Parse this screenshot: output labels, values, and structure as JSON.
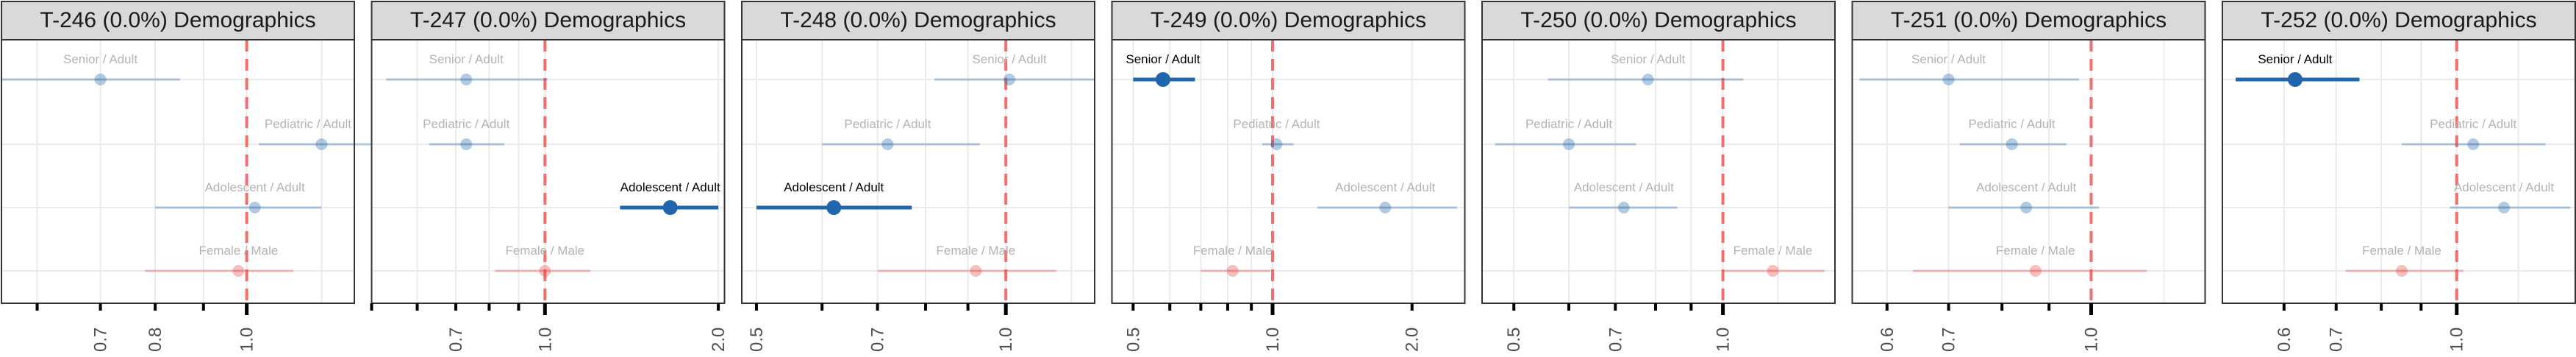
{
  "chart_data": [
    {
      "type": "forest",
      "title": "T-246 (0.0%) Demographics",
      "scale": "log",
      "xlim": [
        0.55,
        1.3
      ],
      "reference_line": 1.0,
      "tick_labels": [
        "0.7",
        "0.8",
        "1.0"
      ],
      "ticks": [
        0.6,
        0.7,
        0.8,
        0.9,
        1.0
      ],
      "gridlines": [
        0.6,
        0.7,
        0.8,
        0.9,
        1.0,
        1.2
      ],
      "rows": [
        {
          "label": "Senior / Adult",
          "estimate": 0.7,
          "low": 0.55,
          "high": 0.85,
          "highlighted": false,
          "group": "age"
        },
        {
          "label": "Pediatric / Adult",
          "estimate": 1.2,
          "low": 1.03,
          "high": 1.4,
          "highlighted": false,
          "group": "age"
        },
        {
          "label": "Adolescent / Adult",
          "estimate": 1.02,
          "low": 0.8,
          "high": 1.2,
          "highlighted": false,
          "group": "age"
        },
        {
          "label": "Female / Male",
          "estimate": 0.98,
          "low": 0.78,
          "high": 1.12,
          "highlighted": false,
          "group": "sex"
        }
      ]
    },
    {
      "type": "forest",
      "title": "T-247 (0.0%) Demographics",
      "scale": "log",
      "xlim": [
        0.5,
        2.05
      ],
      "reference_line": 1.0,
      "tick_labels": [
        "0.7",
        "1.0",
        "2.0"
      ],
      "ticks": [
        0.5,
        0.6,
        0.7,
        0.8,
        0.9,
        1.0,
        2.0
      ],
      "gridlines": [
        0.5,
        0.6,
        0.7,
        0.8,
        0.9,
        1.0,
        2.0
      ],
      "rows": [
        {
          "label": "Senior / Adult",
          "estimate": 0.73,
          "low": 0.53,
          "high": 1.01,
          "highlighted": false,
          "group": "age"
        },
        {
          "label": "Pediatric / Adult",
          "estimate": 0.73,
          "low": 0.63,
          "high": 0.85,
          "highlighted": false,
          "group": "age"
        },
        {
          "label": "Adolescent / Adult",
          "estimate": 1.65,
          "low": 1.35,
          "high": 2.0,
          "highlighted": true,
          "group": "age"
        },
        {
          "label": "Female / Male",
          "estimate": 1.0,
          "low": 0.82,
          "high": 1.2,
          "highlighted": false,
          "group": "sex"
        }
      ]
    },
    {
      "type": "forest",
      "title": "T-248 (0.0%) Demographics",
      "scale": "log",
      "xlim": [
        0.48,
        1.28
      ],
      "reference_line": 1.0,
      "tick_labels": [
        "0.5",
        "0.7",
        "1.0"
      ],
      "ticks": [
        0.5,
        0.6,
        0.7,
        0.8,
        0.9,
        1.0
      ],
      "gridlines": [
        0.5,
        0.6,
        0.7,
        0.8,
        0.9,
        1.0,
        1.2
      ],
      "rows": [
        {
          "label": "Senior / Adult",
          "estimate": 1.01,
          "low": 0.82,
          "high": 1.28,
          "highlighted": false,
          "group": "age"
        },
        {
          "label": "Pediatric / Adult",
          "estimate": 0.72,
          "low": 0.6,
          "high": 0.93,
          "highlighted": false,
          "group": "age"
        },
        {
          "label": "Adolescent / Adult",
          "estimate": 0.62,
          "low": 0.5,
          "high": 0.77,
          "highlighted": true,
          "group": "age"
        },
        {
          "label": "Female / Male",
          "estimate": 0.92,
          "low": 0.7,
          "high": 1.15,
          "highlighted": false,
          "group": "sex"
        }
      ]
    },
    {
      "type": "forest",
      "title": "T-249 (0.0%) Demographics",
      "scale": "log",
      "xlim": [
        0.45,
        2.6
      ],
      "reference_line": 1.0,
      "tick_labels": [
        "0.5",
        "1.0",
        "2.0"
      ],
      "ticks": [
        0.5,
        0.6,
        0.7,
        0.8,
        0.9,
        1.0,
        2.0
      ],
      "gridlines": [
        0.5,
        0.6,
        0.7,
        0.8,
        0.9,
        1.0,
        2.0
      ],
      "rows": [
        {
          "label": "Senior / Adult",
          "estimate": 0.58,
          "low": 0.5,
          "high": 0.68,
          "highlighted": true,
          "group": "age"
        },
        {
          "label": "Pediatric / Adult",
          "estimate": 1.02,
          "low": 0.95,
          "high": 1.11,
          "highlighted": false,
          "group": "age"
        },
        {
          "label": "Adolescent / Adult",
          "estimate": 1.75,
          "low": 1.25,
          "high": 2.5,
          "highlighted": false,
          "group": "age"
        },
        {
          "label": "Female / Male",
          "estimate": 0.82,
          "low": 0.7,
          "high": 0.99,
          "highlighted": false,
          "group": "sex"
        }
      ]
    },
    {
      "type": "forest",
      "title": "T-250 (0.0%) Demographics",
      "scale": "log",
      "xlim": [
        0.45,
        1.45
      ],
      "reference_line": 1.0,
      "tick_labels": [
        "0.5",
        "0.7",
        "1.0"
      ],
      "ticks": [
        0.5,
        0.6,
        0.7,
        0.8,
        0.9,
        1.0
      ],
      "gridlines": [
        0.5,
        0.6,
        0.7,
        0.8,
        0.9,
        1.0,
        1.2
      ],
      "rows": [
        {
          "label": "Senior / Adult",
          "estimate": 0.78,
          "low": 0.56,
          "high": 1.07,
          "highlighted": false,
          "group": "age"
        },
        {
          "label": "Pediatric / Adult",
          "estimate": 0.6,
          "low": 0.47,
          "high": 0.75,
          "highlighted": false,
          "group": "age"
        },
        {
          "label": "Adolescent / Adult",
          "estimate": 0.72,
          "low": 0.6,
          "high": 0.86,
          "highlighted": false,
          "group": "age"
        },
        {
          "label": "Female / Male",
          "estimate": 1.18,
          "low": 1.0,
          "high": 1.4,
          "highlighted": false,
          "group": "sex"
        }
      ]
    },
    {
      "type": "forest",
      "title": "T-251 (0.0%) Demographics",
      "scale": "log",
      "xlim": [
        0.55,
        1.33
      ],
      "reference_line": 1.0,
      "tick_labels": [
        "0.6",
        "0.7",
        "1.0"
      ],
      "ticks": [
        0.6,
        0.7,
        0.8,
        0.9,
        1.0
      ],
      "gridlines": [
        0.6,
        0.7,
        0.8,
        0.9,
        1.0,
        1.2
      ],
      "rows": [
        {
          "label": "Senior / Adult",
          "estimate": 0.7,
          "low": 0.56,
          "high": 0.97,
          "highlighted": false,
          "group": "age"
        },
        {
          "label": "Pediatric / Adult",
          "estimate": 0.82,
          "low": 0.72,
          "high": 0.94,
          "highlighted": false,
          "group": "age"
        },
        {
          "label": "Adolescent / Adult",
          "estimate": 0.85,
          "low": 0.7,
          "high": 1.02,
          "highlighted": false,
          "group": "age"
        },
        {
          "label": "Female / Male",
          "estimate": 0.87,
          "low": 0.64,
          "high": 1.15,
          "highlighted": false,
          "group": "sex"
        }
      ]
    },
    {
      "type": "forest",
      "title": "T-252 (0.0%) Demographics",
      "scale": "log",
      "xlim": [
        0.5,
        1.42
      ],
      "reference_line": 1.0,
      "tick_labels": [
        "0.6",
        "0.7",
        "1.0"
      ],
      "ticks": [
        0.6,
        0.7,
        0.8,
        0.9,
        1.0
      ],
      "gridlines": [
        0.6,
        0.7,
        0.8,
        0.9,
        1.0,
        1.2
      ],
      "rows": [
        {
          "label": "Senior / Adult",
          "estimate": 0.62,
          "low": 0.52,
          "high": 0.75,
          "highlighted": true,
          "group": "age"
        },
        {
          "label": "Pediatric / Adult",
          "estimate": 1.05,
          "low": 0.85,
          "high": 1.3,
          "highlighted": false,
          "group": "age"
        },
        {
          "label": "Adolescent / Adult",
          "estimate": 1.15,
          "low": 0.98,
          "high": 1.4,
          "highlighted": false,
          "group": "age"
        },
        {
          "label": "Female / Male",
          "estimate": 0.85,
          "low": 0.72,
          "high": 1.02,
          "highlighted": false,
          "group": "sex"
        }
      ]
    }
  ],
  "colors": {
    "age": "#2166ac",
    "sex": "#e84646",
    "reference_line": "#f07070",
    "strip_bg": "#d9d9d9",
    "panel_border": "#333333",
    "grid": "#ebebeb",
    "label_faded": "#b3b3b3",
    "label_highlight": "#000000"
  }
}
